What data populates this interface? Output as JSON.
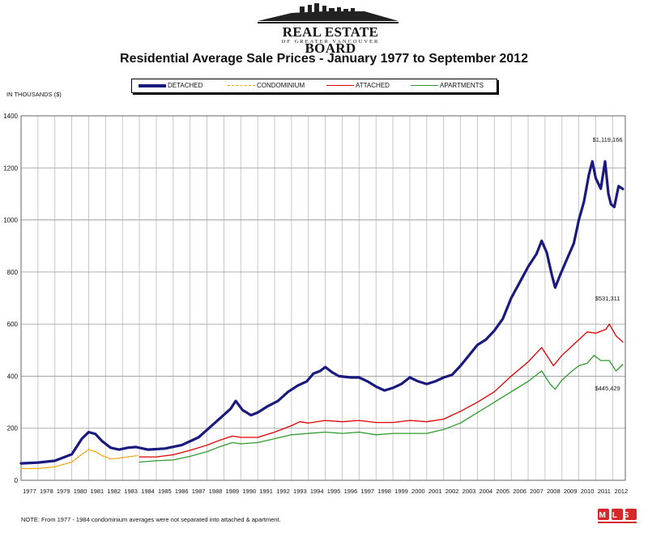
{
  "header": {
    "logo_name": "REAL ESTATE BOARD",
    "logo_sub": "OF GREATER VANCOUVER",
    "logo_icon": "city-skyline-icon"
  },
  "footer": {
    "note": "NOTE:  From 1977 - 1984 condominium averages were not separated into attached & apartment.",
    "mls_logo_text": "MLS",
    "mls_logo_icon": "mls-logo-icon"
  },
  "chart_data": {
    "type": "line",
    "title": "Residential Average Sale Prices  -  January 1977 to September 2012",
    "ylabel": "IN THOUSANDS ($)",
    "xlabel": "",
    "ylim": [
      0,
      1400
    ],
    "yticks": [
      0,
      200,
      400,
      600,
      800,
      1000,
      1200,
      1400
    ],
    "xlim": [
      1977.0,
      2012.75
    ],
    "xticks": [
      "1977",
      "1978",
      "1979",
      "1980",
      "1981",
      "1982",
      "1983",
      "1984",
      "1985",
      "1986",
      "1987",
      "1988",
      "1989",
      "1990",
      "1991",
      "1992",
      "1993",
      "1994",
      "1995",
      "1996",
      "1997",
      "1998",
      "1999",
      "2000",
      "2001",
      "2002",
      "2003",
      "2004",
      "2005",
      "2006",
      "2007",
      "2008",
      "2009",
      "2010",
      "2011",
      "2012"
    ],
    "grid": true,
    "legend_position": "top",
    "series": [
      {
        "name": "DETACHED",
        "color": "#1a1a7e",
        "style": "thick",
        "points": [
          [
            1977.0,
            65
          ],
          [
            1978.0,
            68
          ],
          [
            1979.0,
            75
          ],
          [
            1980.0,
            100
          ],
          [
            1980.6,
            160
          ],
          [
            1981.0,
            185
          ],
          [
            1981.4,
            178
          ],
          [
            1981.8,
            150
          ],
          [
            1982.3,
            125
          ],
          [
            1982.8,
            118
          ],
          [
            1983.3,
            125
          ],
          [
            1983.8,
            128
          ],
          [
            1984.5,
            118
          ],
          [
            1985.5,
            122
          ],
          [
            1986.5,
            135
          ],
          [
            1987.5,
            165
          ],
          [
            1988.2,
            205
          ],
          [
            1988.8,
            240
          ],
          [
            1989.4,
            275
          ],
          [
            1989.7,
            305
          ],
          [
            1990.1,
            270
          ],
          [
            1990.6,
            250
          ],
          [
            1991.0,
            260
          ],
          [
            1991.6,
            285
          ],
          [
            1992.2,
            305
          ],
          [
            1992.8,
            340
          ],
          [
            1993.4,
            365
          ],
          [
            1993.9,
            380
          ],
          [
            1994.3,
            410
          ],
          [
            1994.7,
            420
          ],
          [
            1995.0,
            435
          ],
          [
            1995.4,
            415
          ],
          [
            1995.8,
            400
          ],
          [
            1996.5,
            395
          ],
          [
            1997.0,
            395
          ],
          [
            1997.5,
            380
          ],
          [
            1998.0,
            360
          ],
          [
            1998.5,
            345
          ],
          [
            1999.0,
            355
          ],
          [
            1999.5,
            370
          ],
          [
            2000.0,
            395
          ],
          [
            2000.5,
            380
          ],
          [
            2001.0,
            370
          ],
          [
            2001.5,
            380
          ],
          [
            2002.0,
            395
          ],
          [
            2002.5,
            405
          ],
          [
            2003.0,
            440
          ],
          [
            2003.5,
            480
          ],
          [
            2004.0,
            520
          ],
          [
            2004.5,
            540
          ],
          [
            2005.0,
            575
          ],
          [
            2005.5,
            620
          ],
          [
            2006.0,
            700
          ],
          [
            2006.5,
            760
          ],
          [
            2007.0,
            820
          ],
          [
            2007.5,
            870
          ],
          [
            2007.8,
            920
          ],
          [
            2008.1,
            875
          ],
          [
            2008.4,
            790
          ],
          [
            2008.6,
            740
          ],
          [
            2008.9,
            790
          ],
          [
            2009.3,
            850
          ],
          [
            2009.7,
            910
          ],
          [
            2010.0,
            1000
          ],
          [
            2010.3,
            1070
          ],
          [
            2010.6,
            1175
          ],
          [
            2010.8,
            1225
          ],
          [
            2011.0,
            1160
          ],
          [
            2011.3,
            1120
          ],
          [
            2011.55,
            1225
          ],
          [
            2011.75,
            1100
          ],
          [
            2011.9,
            1060
          ],
          [
            2012.1,
            1050
          ],
          [
            2012.35,
            1130
          ],
          [
            2012.6,
            1119
          ]
        ]
      },
      {
        "name": "CONDOMINIUM",
        "color": "#f0a000",
        "style": "dotted",
        "points": [
          [
            1977.0,
            45
          ],
          [
            1978.0,
            45
          ],
          [
            1979.0,
            52
          ],
          [
            1980.0,
            70
          ],
          [
            1980.6,
            100
          ],
          [
            1981.0,
            118
          ],
          [
            1981.4,
            110
          ],
          [
            1981.8,
            95
          ],
          [
            1982.3,
            82
          ],
          [
            1982.8,
            85
          ],
          [
            1983.3,
            90
          ],
          [
            1983.9,
            95
          ]
        ]
      },
      {
        "name": "ATTACHED",
        "color": "#e00000",
        "style": "solid",
        "points": [
          [
            1984.0,
            90
          ],
          [
            1985.0,
            90
          ],
          [
            1986.0,
            98
          ],
          [
            1987.0,
            115
          ],
          [
            1988.0,
            135
          ],
          [
            1988.8,
            155
          ],
          [
            1989.5,
            170
          ],
          [
            1990.0,
            165
          ],
          [
            1991.0,
            165
          ],
          [
            1992.0,
            185
          ],
          [
            1993.0,
            210
          ],
          [
            1993.5,
            225
          ],
          [
            1994.0,
            220
          ],
          [
            1995.0,
            230
          ],
          [
            1996.0,
            225
          ],
          [
            1997.0,
            230
          ],
          [
            1998.0,
            222
          ],
          [
            1999.0,
            222
          ],
          [
            2000.0,
            230
          ],
          [
            2001.0,
            225
          ],
          [
            2002.0,
            235
          ],
          [
            2003.0,
            265
          ],
          [
            2004.0,
            300
          ],
          [
            2005.0,
            340
          ],
          [
            2006.0,
            400
          ],
          [
            2007.0,
            455
          ],
          [
            2007.8,
            510
          ],
          [
            2008.2,
            470
          ],
          [
            2008.5,
            440
          ],
          [
            2009.0,
            480
          ],
          [
            2009.5,
            510
          ],
          [
            2010.0,
            540
          ],
          [
            2010.5,
            570
          ],
          [
            2011.0,
            565
          ],
          [
            2011.6,
            580
          ],
          [
            2011.8,
            600
          ],
          [
            2012.2,
            555
          ],
          [
            2012.6,
            531
          ]
        ]
      },
      {
        "name": "APARTMENTS",
        "color": "#2e9b2e",
        "style": "solid",
        "points": [
          [
            1984.0,
            70
          ],
          [
            1985.0,
            75
          ],
          [
            1986.0,
            78
          ],
          [
            1987.0,
            92
          ],
          [
            1988.0,
            110
          ],
          [
            1988.8,
            130
          ],
          [
            1989.5,
            145
          ],
          [
            1990.0,
            140
          ],
          [
            1991.0,
            145
          ],
          [
            1992.0,
            160
          ],
          [
            1993.0,
            175
          ],
          [
            1994.0,
            180
          ],
          [
            1995.0,
            185
          ],
          [
            1996.0,
            180
          ],
          [
            1997.0,
            185
          ],
          [
            1998.0,
            175
          ],
          [
            1999.0,
            180
          ],
          [
            2000.0,
            180
          ],
          [
            2001.0,
            180
          ],
          [
            2002.0,
            195
          ],
          [
            2003.0,
            220
          ],
          [
            2004.0,
            260
          ],
          [
            2005.0,
            300
          ],
          [
            2006.0,
            340
          ],
          [
            2007.0,
            380
          ],
          [
            2007.8,
            420
          ],
          [
            2008.3,
            370
          ],
          [
            2008.6,
            350
          ],
          [
            2009.0,
            385
          ],
          [
            2009.6,
            420
          ],
          [
            2010.0,
            440
          ],
          [
            2010.5,
            450
          ],
          [
            2010.9,
            480
          ],
          [
            2011.3,
            460
          ],
          [
            2011.8,
            460
          ],
          [
            2012.2,
            420
          ],
          [
            2012.6,
            445
          ]
        ]
      }
    ],
    "annotations": [
      {
        "text": "$1,119,166",
        "x": 2011.7,
        "y": 1300
      },
      {
        "text": "$531,311",
        "x": 2011.7,
        "y": 690
      },
      {
        "text": "$445,429",
        "x": 2011.7,
        "y": 345
      }
    ]
  }
}
